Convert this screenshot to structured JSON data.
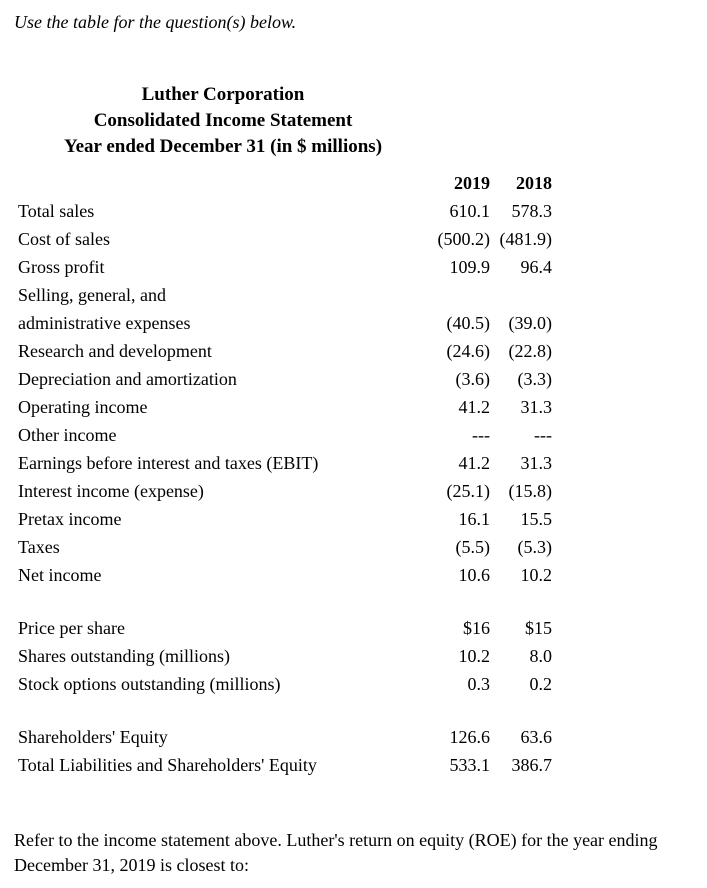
{
  "instruction": "Use the table for the question(s) below.",
  "statement": {
    "title_line1": "Luther Corporation",
    "title_line2": "Consolidated Income Statement",
    "title_line3": "Year ended December 31 (in $ millions)",
    "columns": [
      "2019",
      "2018"
    ],
    "rows": [
      {
        "label": "Total sales",
        "v2019": "610.1",
        "v2018": "578.3"
      },
      {
        "label": "Cost of sales",
        "v2019": "(500.2)",
        "v2018": "(481.9)"
      },
      {
        "label": "Gross profit",
        "v2019": "109.9",
        "v2018": "96.4"
      },
      {
        "label": "Selling, general, and",
        "v2019": "",
        "v2018": ""
      },
      {
        "label": "administrative expenses",
        "v2019": "(40.5)",
        "v2018": "(39.0)"
      },
      {
        "label": "Research and development",
        "v2019": "(24.6)",
        "v2018": "(22.8)"
      },
      {
        "label": "Depreciation and amortization",
        "v2019": "(3.6)",
        "v2018": "(3.3)"
      },
      {
        "label": "Operating income",
        "v2019": "41.2",
        "v2018": "31.3"
      },
      {
        "label": "Other income",
        "v2019": "---",
        "v2018": "---"
      },
      {
        "label": "Earnings before interest and taxes (EBIT)",
        "v2019": "41.2",
        "v2018": "31.3"
      },
      {
        "label": "Interest income (expense)",
        "v2019": "(25.1)",
        "v2018": "(15.8)"
      },
      {
        "label": "Pretax income",
        "v2019": "16.1",
        "v2018": "15.5"
      },
      {
        "label": "Taxes",
        "v2019": "(5.5)",
        "v2018": "(5.3)"
      },
      {
        "label": "Net income",
        "v2019": "10.6",
        "v2018": "10.2"
      },
      {
        "label": "Price per share",
        "v2019": "$16",
        "v2018": "$15"
      },
      {
        "label": "Shares outstanding (millions)",
        "v2019": "10.2",
        "v2018": "8.0"
      },
      {
        "label": "Stock options outstanding (millions)",
        "v2019": "0.3",
        "v2018": "0.2"
      },
      {
        "label": "Shareholders' Equity",
        "v2019": "126.6",
        "v2018": "63.6"
      },
      {
        "label": "Total Liabilities and Shareholders' Equity",
        "v2019": "533.1",
        "v2018": "386.7"
      }
    ]
  },
  "question": {
    "text": "Refer to the income statement above. Luther's return on equity (ROE) for the year ending December 31, 2019 is closest to:"
  },
  "colors": {
    "text": "#000000",
    "background": "#ffffff"
  }
}
